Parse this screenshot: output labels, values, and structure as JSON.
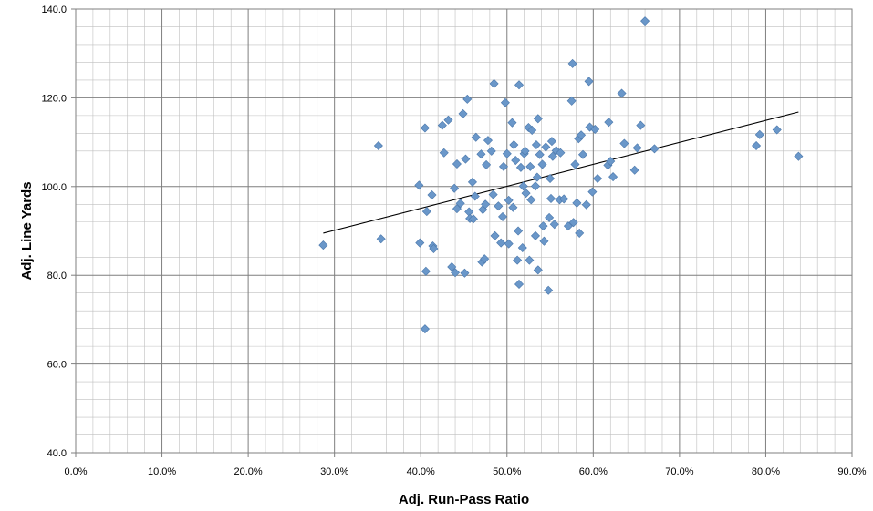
{
  "chart_data": {
    "type": "scatter",
    "xlabel": "Adj. Run-Pass Ratio",
    "ylabel": "Adj. Line Yards",
    "xlim": [
      0.0,
      0.9
    ],
    "ylim": [
      40,
      140
    ],
    "x_ticks": [
      "0.0%",
      "10.0%",
      "20.0%",
      "30.0%",
      "40.0%",
      "50.0%",
      "60.0%",
      "70.0%",
      "80.0%",
      "90.0%"
    ],
    "y_ticks": [
      "40.0",
      "60.0",
      "80.0",
      "100.0",
      "120.0",
      "140.0"
    ],
    "grid": "major and minor",
    "legend": "none",
    "marker": "diamond",
    "marker_color": "#6a97c9",
    "marker_edge_color": "#4a77ab",
    "trendline": {
      "x": [
        0.287,
        0.838
      ],
      "y": [
        89.5,
        116.8
      ],
      "color": "#000000"
    },
    "points": [
      [
        0.287,
        86.8
      ],
      [
        0.351,
        109.2
      ],
      [
        0.354,
        88.2
      ],
      [
        0.398,
        100.3
      ],
      [
        0.399,
        87.3
      ],
      [
        0.405,
        113.2
      ],
      [
        0.406,
        80.9
      ],
      [
        0.407,
        94.4
      ],
      [
        0.405,
        67.9
      ],
      [
        0.413,
        98.1
      ],
      [
        0.414,
        86.6
      ],
      [
        0.415,
        86.0
      ],
      [
        0.425,
        113.8
      ],
      [
        0.427,
        107.6
      ],
      [
        0.432,
        115.0
      ],
      [
        0.436,
        81.9
      ],
      [
        0.439,
        99.6
      ],
      [
        0.44,
        80.6
      ],
      [
        0.442,
        95.0
      ],
      [
        0.442,
        105.1
      ],
      [
        0.446,
        96.2
      ],
      [
        0.449,
        116.4
      ],
      [
        0.451,
        80.5
      ],
      [
        0.452,
        106.2
      ],
      [
        0.454,
        119.7
      ],
      [
        0.456,
        94.3
      ],
      [
        0.457,
        92.8
      ],
      [
        0.46,
        101.0
      ],
      [
        0.461,
        92.7
      ],
      [
        0.463,
        97.8
      ],
      [
        0.464,
        111.1
      ],
      [
        0.47,
        107.3
      ],
      [
        0.471,
        83.0
      ],
      [
        0.472,
        94.8
      ],
      [
        0.474,
        83.7
      ],
      [
        0.475,
        96.0
      ],
      [
        0.476,
        104.9
      ],
      [
        0.478,
        110.4
      ],
      [
        0.482,
        108.0
      ],
      [
        0.484,
        98.2
      ],
      [
        0.485,
        123.2
      ],
      [
        0.486,
        88.9
      ],
      [
        0.49,
        95.6
      ],
      [
        0.493,
        87.3
      ],
      [
        0.495,
        93.2
      ],
      [
        0.496,
        104.5
      ],
      [
        0.498,
        118.9
      ],
      [
        0.5,
        107.4
      ],
      [
        0.502,
        96.9
      ],
      [
        0.502,
        87.1
      ],
      [
        0.506,
        114.4
      ],
      [
        0.507,
        95.3
      ],
      [
        0.508,
        109.4
      ],
      [
        0.51,
        105.9
      ],
      [
        0.512,
        83.4
      ],
      [
        0.513,
        90.0
      ],
      [
        0.514,
        122.9
      ],
      [
        0.514,
        78.0
      ],
      [
        0.516,
        104.3
      ],
      [
        0.518,
        86.2
      ],
      [
        0.519,
        100.1
      ],
      [
        0.52,
        107.4
      ],
      [
        0.521,
        108.0
      ],
      [
        0.522,
        98.5
      ],
      [
        0.525,
        113.3
      ],
      [
        0.526,
        83.4
      ],
      [
        0.527,
        104.5
      ],
      [
        0.528,
        97.0
      ],
      [
        0.529,
        112.7
      ],
      [
        0.533,
        100.1
      ],
      [
        0.533,
        88.9
      ],
      [
        0.534,
        109.4
      ],
      [
        0.535,
        102.1
      ],
      [
        0.536,
        115.3
      ],
      [
        0.536,
        81.2
      ],
      [
        0.538,
        107.2
      ],
      [
        0.541,
        105.0
      ],
      [
        0.542,
        91.1
      ],
      [
        0.543,
        87.7
      ],
      [
        0.545,
        108.9
      ],
      [
        0.548,
        76.6
      ],
      [
        0.549,
        93.0
      ],
      [
        0.55,
        101.8
      ],
      [
        0.551,
        97.3
      ],
      [
        0.552,
        110.2
      ],
      [
        0.553,
        106.8
      ],
      [
        0.555,
        91.5
      ],
      [
        0.557,
        108.1
      ],
      [
        0.561,
        97.0
      ],
      [
        0.562,
        107.6
      ],
      [
        0.566,
        97.2
      ],
      [
        0.571,
        91.1
      ],
      [
        0.575,
        119.3
      ],
      [
        0.576,
        127.7
      ],
      [
        0.577,
        91.9
      ],
      [
        0.579,
        105.0
      ],
      [
        0.581,
        96.3
      ],
      [
        0.583,
        110.8
      ],
      [
        0.584,
        89.5
      ],
      [
        0.586,
        111.6
      ],
      [
        0.588,
        107.2
      ],
      [
        0.592,
        95.9
      ],
      [
        0.595,
        123.7
      ],
      [
        0.596,
        113.4
      ],
      [
        0.599,
        98.8
      ],
      [
        0.602,
        112.9
      ],
      [
        0.605,
        101.8
      ],
      [
        0.617,
        104.8
      ],
      [
        0.618,
        114.5
      ],
      [
        0.62,
        105.7
      ],
      [
        0.623,
        102.2
      ],
      [
        0.633,
        121.0
      ],
      [
        0.636,
        109.7
      ],
      [
        0.648,
        103.7
      ],
      [
        0.651,
        108.7
      ],
      [
        0.655,
        113.8
      ],
      [
        0.66,
        137.3
      ],
      [
        0.671,
        108.5
      ],
      [
        0.789,
        109.2
      ],
      [
        0.793,
        111.7
      ],
      [
        0.813,
        112.8
      ],
      [
        0.838,
        106.8
      ]
    ]
  }
}
